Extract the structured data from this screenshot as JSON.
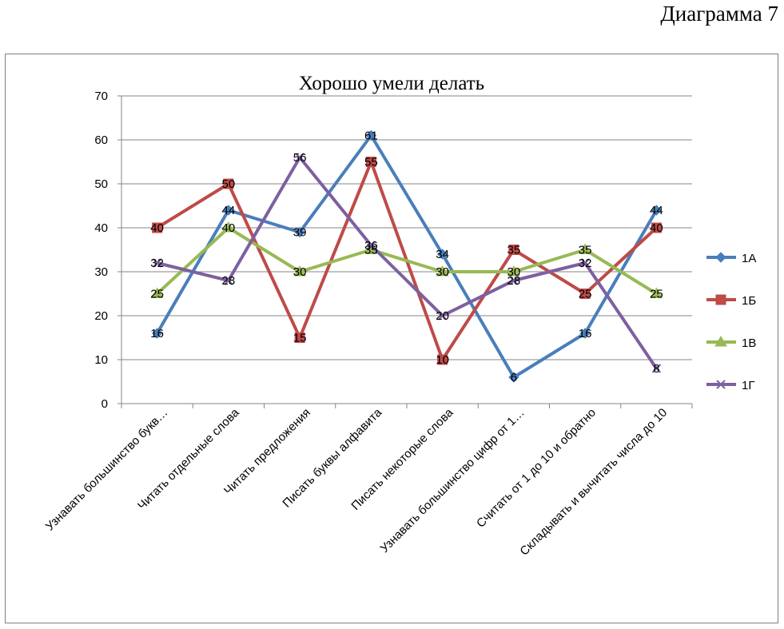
{
  "page_label": "Диаграмма 7",
  "chart_data": {
    "type": "line",
    "title": "Хорошо умели делать",
    "xlabel": "",
    "ylabel": "",
    "ylim": [
      0,
      70
    ],
    "yticks": [
      0,
      10,
      20,
      30,
      40,
      50,
      60,
      70
    ],
    "grid": true,
    "legend_position": "right",
    "categories": [
      "Узнавать большинство букв…",
      "Читать отдельные слова",
      "Читать предложения",
      "Писать буквы алфавита",
      "Писать некоторые слова",
      "Узнавать большинство цифр от 1…",
      "Считать от 1 до 10 и обратно",
      "Складывать и вычитать числа до 10"
    ],
    "series": [
      {
        "name": "1А",
        "color": "#4a7ebb",
        "marker": "diamond",
        "values": [
          16,
          44,
          39,
          61,
          34,
          6,
          16,
          44
        ]
      },
      {
        "name": "1Б",
        "color": "#be4b48",
        "marker": "square",
        "values": [
          40,
          50,
          15,
          55,
          10,
          35,
          25,
          40
        ]
      },
      {
        "name": "1В",
        "color": "#98b954",
        "marker": "triangle",
        "values": [
          25,
          40,
          30,
          35,
          30,
          30,
          35,
          25
        ]
      },
      {
        "name": "1Г",
        "color": "#7d60a0",
        "marker": "x",
        "values": [
          32,
          28,
          56,
          36,
          20,
          28,
          32,
          8
        ]
      }
    ]
  }
}
